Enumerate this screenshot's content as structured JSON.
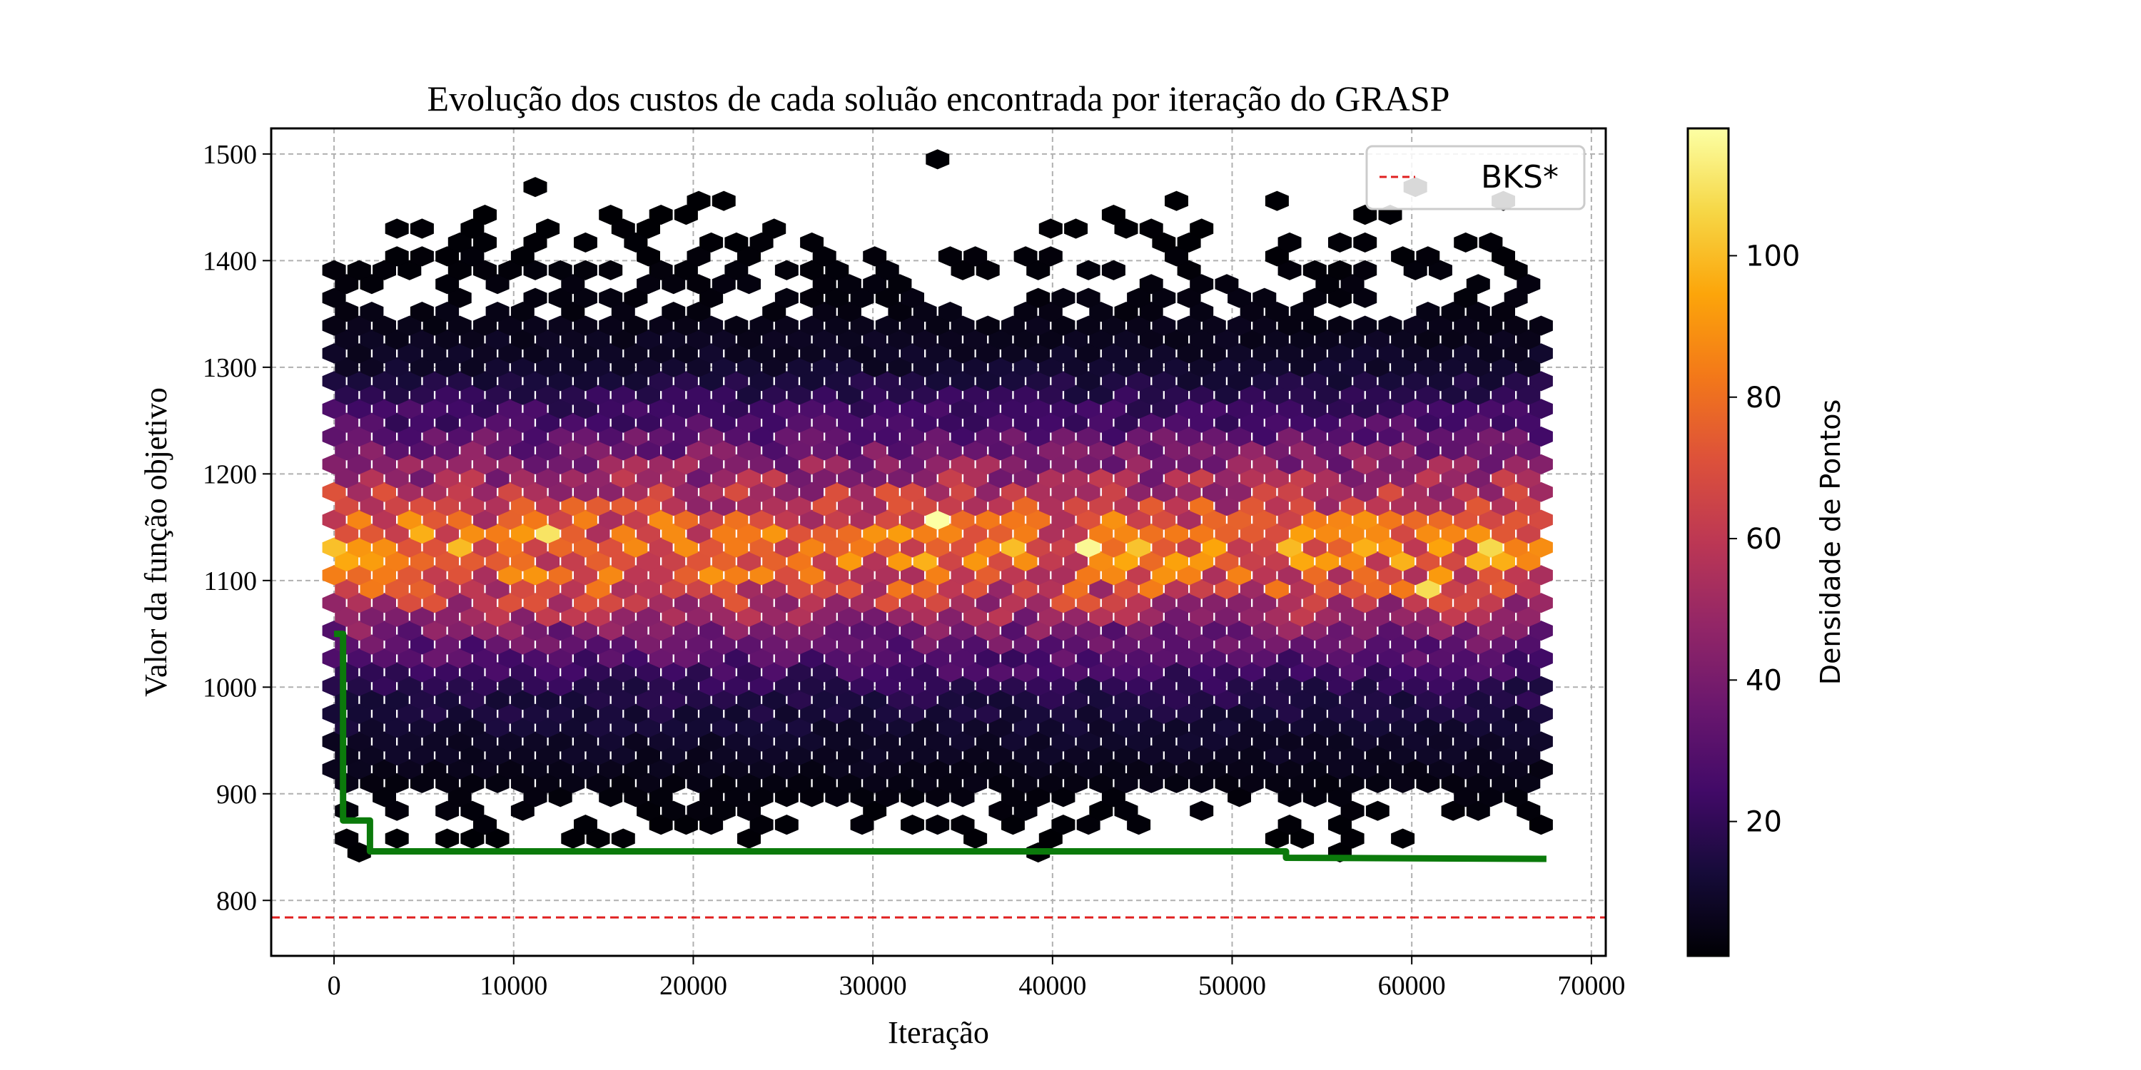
{
  "chart_data": {
    "type": "heatmap",
    "subtype": "hexbin",
    "title": "Evolução dos custos de cada soluão encontrada por iteração do GRASP",
    "xlabel": "Iteração",
    "ylabel": "Valor da função objetivo",
    "xlim": [
      -3500,
      70800
    ],
    "ylim": [
      748,
      1524
    ],
    "x_ticks": [
      0,
      10000,
      20000,
      30000,
      40000,
      50000,
      60000,
      70000
    ],
    "x_tick_labels": [
      "0",
      "10000",
      "20000",
      "30000",
      "40000",
      "50000",
      "60000",
      "70000"
    ],
    "y_ticks": [
      800,
      900,
      1000,
      1100,
      1200,
      1300,
      1400,
      1500
    ],
    "y_tick_labels": [
      "800",
      "900",
      "1000",
      "1100",
      "1200",
      "1300",
      "1400",
      "1500"
    ],
    "grid": true,
    "colormap": "inferno",
    "colorbar": {
      "label": "Densidade de Pontos",
      "range": [
        1,
        118
      ],
      "ticks": [
        20,
        40,
        60,
        80,
        100
      ],
      "tick_labels": [
        "20",
        "40",
        "60",
        "80",
        "100"
      ]
    },
    "density_profile": {
      "x_range": [
        0,
        67500
      ],
      "y": [
        850,
        900,
        950,
        1000,
        1050,
        1100,
        1130,
        1150,
        1200,
        1250,
        1300,
        1350,
        1400,
        1440
      ],
      "density": [
        1,
        3,
        9,
        18,
        38,
        72,
        80,
        74,
        48,
        26,
        10,
        4,
        2,
        1
      ]
    },
    "hotspots": [
      {
        "x": 33500,
        "y": 1155,
        "density": 118
      },
      {
        "x": 42500,
        "y": 1130,
        "density": 116
      },
      {
        "x": 12000,
        "y": 1142,
        "density": 110
      },
      {
        "x": 61000,
        "y": 1095,
        "density": 108
      },
      {
        "x": 64500,
        "y": 1130,
        "density": 107
      }
    ],
    "series": [
      {
        "name": "BKS*",
        "type": "hline",
        "y": 784,
        "color": "#e02020",
        "style": "dashed"
      },
      {
        "type": "line",
        "color": "#0b7a0b",
        "x": [
          0,
          500,
          500,
          2000,
          2000,
          53000,
          53000,
          67500
        ],
        "y": [
          1050,
          1050,
          875,
          875,
          846,
          846,
          840,
          839
        ]
      }
    ],
    "legend": {
      "position": "top-right"
    }
  }
}
